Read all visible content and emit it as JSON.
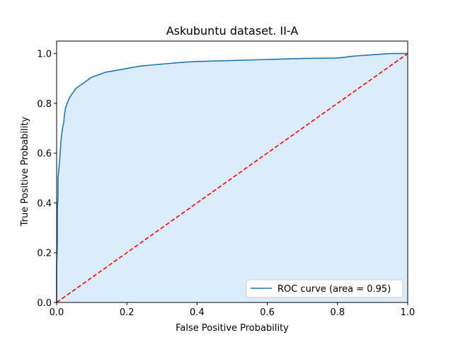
{
  "chart_data": {
    "type": "line",
    "title": "Askubuntu dataset. II-A",
    "xlabel": "False Positive Probability",
    "ylabel": "True Positive Probability",
    "xlim": [
      0,
      1
    ],
    "ylim": [
      0,
      1.05
    ],
    "xticks": [
      "0.0",
      "0.2",
      "0.4",
      "0.6",
      "0.8",
      "1.0"
    ],
    "yticks": [
      "0.0",
      "0.2",
      "0.4",
      "0.6",
      "0.8",
      "1.0"
    ],
    "grid": false,
    "legend_position": "lower-right",
    "series": [
      {
        "name": "ROC curve (area = 0.95)",
        "style": "solid",
        "color": "#1f77b4",
        "fill": "#dcecfb",
        "x": [
          0.0,
          0.0,
          0.002,
          0.002,
          0.004,
          0.004,
          0.006,
          0.008,
          0.01,
          0.012,
          0.014,
          0.016,
          0.018,
          0.02,
          0.022,
          0.025,
          0.028,
          0.03,
          0.033,
          0.036,
          0.04,
          0.045,
          0.05,
          0.055,
          0.06,
          0.065,
          0.07,
          0.08,
          0.09,
          0.1,
          0.11,
          0.12,
          0.14,
          0.16,
          0.18,
          0.2,
          0.24,
          0.28,
          0.32,
          0.36,
          0.4,
          0.5,
          0.6,
          0.7,
          0.8,
          0.82,
          0.85,
          0.9,
          0.95,
          1.0
        ],
        "y": [
          0.0,
          0.14,
          0.24,
          0.37,
          0.43,
          0.5,
          0.53,
          0.56,
          0.6,
          0.64,
          0.67,
          0.69,
          0.71,
          0.72,
          0.75,
          0.78,
          0.79,
          0.8,
          0.81,
          0.82,
          0.83,
          0.84,
          0.85,
          0.86,
          0.865,
          0.87,
          0.875,
          0.885,
          0.895,
          0.905,
          0.91,
          0.915,
          0.925,
          0.93,
          0.935,
          0.94,
          0.95,
          0.955,
          0.96,
          0.965,
          0.968,
          0.972,
          0.976,
          0.98,
          0.982,
          0.985,
          0.99,
          0.995,
          1.0,
          1.0
        ]
      },
      {
        "style": "dashed",
        "color": "#ff0000",
        "x": [
          0,
          1
        ],
        "y": [
          0,
          1
        ]
      }
    ]
  }
}
